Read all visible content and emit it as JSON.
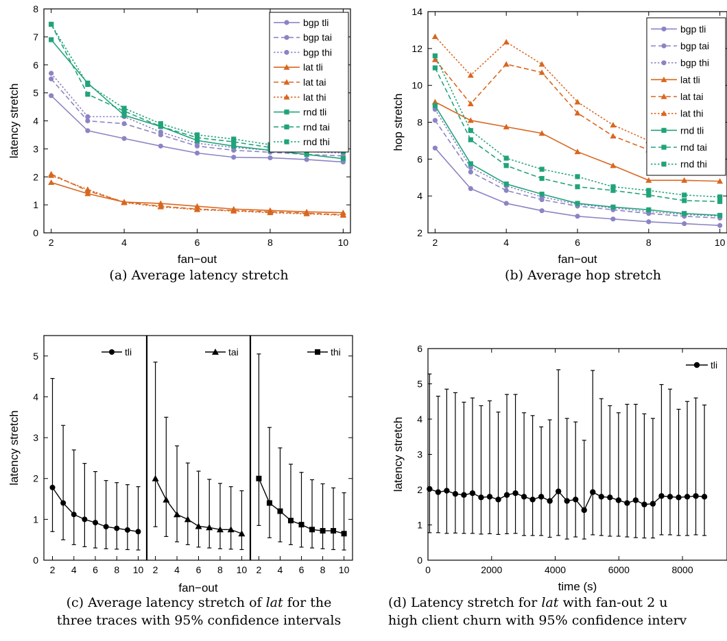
{
  "colors": {
    "bgp": "#8b84c4",
    "lat": "#d9661f",
    "rnd": "#21a37a",
    "black": "#000000"
  },
  "chart_data": [
    {
      "id": "a",
      "type": "line",
      "xlabel": "fan−out",
      "ylabel": "latency stretch",
      "xlim": [
        1.8,
        10.2
      ],
      "ylim": [
        0,
        8
      ],
      "xticks": [
        2,
        4,
        6,
        8,
        10
      ],
      "yticks": [
        0,
        1,
        2,
        3,
        4,
        5,
        6,
        7,
        8
      ],
      "legend": "top-right",
      "x": [
        2,
        3,
        4,
        5,
        6,
        7,
        8,
        9,
        10
      ],
      "caption": [
        "(a)  Average latency stretch"
      ],
      "series": [
        {
          "name": "bgp tli",
          "group": "bgp",
          "style": "solid",
          "marker": "circle",
          "values": [
            4.9,
            3.65,
            3.37,
            3.1,
            2.85,
            2.7,
            2.68,
            2.62,
            2.53
          ]
        },
        {
          "name": "bgp tai",
          "group": "bgp",
          "style": "dashed",
          "marker": "circle",
          "values": [
            5.5,
            4.0,
            3.9,
            3.5,
            3.1,
            2.95,
            2.88,
            2.8,
            2.75
          ]
        },
        {
          "name": "bgp thi",
          "group": "bgp",
          "style": "dotted",
          "marker": "circle",
          "values": [
            5.7,
            4.15,
            4.15,
            3.6,
            3.2,
            3.05,
            2.95,
            2.9,
            2.85
          ]
        },
        {
          "name": "lat tli",
          "group": "lat",
          "style": "solid",
          "marker": "triangle",
          "values": [
            1.8,
            1.4,
            1.1,
            1.05,
            0.95,
            0.85,
            0.8,
            0.75,
            0.72
          ]
        },
        {
          "name": "lat tai",
          "group": "lat",
          "style": "dashed",
          "marker": "triangle",
          "values": [
            2.1,
            1.5,
            1.1,
            0.95,
            0.85,
            0.8,
            0.75,
            0.7,
            0.65
          ]
        },
        {
          "name": "lat thi",
          "group": "lat",
          "style": "dotted",
          "marker": "triangle",
          "values": [
            2.05,
            1.55,
            1.08,
            0.93,
            0.83,
            0.78,
            0.72,
            0.68,
            0.63
          ]
        },
        {
          "name": "rnd tli",
          "group": "rnd",
          "style": "solid",
          "marker": "square",
          "values": [
            6.9,
            5.35,
            4.2,
            3.8,
            3.3,
            3.1,
            2.95,
            2.8,
            2.65
          ]
        },
        {
          "name": "rnd tai",
          "group": "rnd",
          "style": "dashed",
          "marker": "square",
          "values": [
            7.45,
            4.95,
            4.35,
            3.8,
            3.4,
            3.25,
            3.05,
            2.95,
            2.9
          ]
        },
        {
          "name": "rnd thi",
          "group": "rnd",
          "style": "dotted",
          "marker": "square",
          "values": [
            7.45,
            5.3,
            4.45,
            3.9,
            3.5,
            3.35,
            3.15,
            3.0,
            3.05
          ]
        }
      ]
    },
    {
      "id": "b",
      "type": "line",
      "xlabel": "fan−out",
      "ylabel": "hop stretch",
      "xlim": [
        1.8,
        10.2
      ],
      "ylim": [
        2,
        14
      ],
      "xticks": [
        2,
        4,
        6,
        8,
        10
      ],
      "yticks": [
        2,
        4,
        6,
        8,
        10,
        12,
        14
      ],
      "legend": "top-right",
      "x": [
        2,
        3,
        4,
        5,
        6,
        7,
        8,
        9,
        10
      ],
      "caption": [
        "(b)  Average hop stretch"
      ],
      "series": [
        {
          "name": "bgp tli",
          "group": "bgp",
          "style": "solid",
          "marker": "circle",
          "values": [
            6.6,
            4.4,
            3.6,
            3.2,
            2.9,
            2.75,
            2.6,
            2.5,
            2.4
          ]
        },
        {
          "name": "bgp tai",
          "group": "bgp",
          "style": "dashed",
          "marker": "circle",
          "values": [
            8.1,
            5.3,
            4.3,
            3.8,
            3.45,
            3.25,
            3.05,
            2.9,
            2.8
          ]
        },
        {
          "name": "bgp thi",
          "group": "bgp",
          "style": "dotted",
          "marker": "circle",
          "values": [
            8.7,
            5.55,
            4.55,
            3.95,
            3.55,
            3.35,
            3.15,
            3.0,
            2.9
          ]
        },
        {
          "name": "lat tli",
          "group": "lat",
          "style": "solid",
          "marker": "triangle",
          "values": [
            9.1,
            8.1,
            7.75,
            7.4,
            6.4,
            5.65,
            4.85,
            4.85,
            4.8
          ]
        },
        {
          "name": "lat tai",
          "group": "lat",
          "style": "dashed",
          "marker": "triangle",
          "values": [
            11.4,
            9.0,
            11.15,
            10.7,
            8.5,
            7.25,
            6.5,
            6.4,
            6.25
          ]
        },
        {
          "name": "lat thi",
          "group": "lat",
          "style": "dotted",
          "marker": "triangle",
          "values": [
            12.65,
            10.55,
            12.35,
            11.15,
            9.1,
            7.85,
            7.0,
            6.65,
            6.85
          ]
        },
        {
          "name": "rnd tli",
          "group": "rnd",
          "style": "solid",
          "marker": "square",
          "values": [
            8.9,
            5.75,
            4.65,
            4.1,
            3.6,
            3.4,
            3.25,
            3.05,
            2.95
          ]
        },
        {
          "name": "rnd tai",
          "group": "rnd",
          "style": "dashed",
          "marker": "square",
          "values": [
            10.95,
            7.05,
            5.65,
            4.95,
            4.5,
            4.3,
            4.05,
            3.75,
            3.7
          ]
        },
        {
          "name": "rnd thi",
          "group": "rnd",
          "style": "dotted",
          "marker": "square",
          "values": [
            11.6,
            7.55,
            6.05,
            5.45,
            5.05,
            4.5,
            4.3,
            4.05,
            3.95
          ]
        }
      ]
    },
    {
      "id": "c",
      "type": "line",
      "xlabel": "fan−out",
      "ylabel": "latency stretch",
      "ylim": [
        0,
        5.5
      ],
      "yticks": [
        0,
        1,
        2,
        3,
        4,
        5
      ],
      "xlim": [
        1.2,
        10.8
      ],
      "xticks": [
        2,
        4,
        6,
        8,
        10
      ],
      "x": [
        2,
        3,
        4,
        5,
        6,
        7,
        8,
        9,
        10
      ],
      "caption": [
        "(c)  Average latency stretch of ",
        "lat",
        " for the",
        "three traces with 95% confidence intervals"
      ],
      "panels": [
        {
          "name": "tli",
          "marker": "circle",
          "values": [
            1.78,
            1.4,
            1.12,
            1.0,
            0.92,
            0.82,
            0.78,
            0.74,
            0.7
          ],
          "upper": [
            4.45,
            3.3,
            2.7,
            2.37,
            2.17,
            1.95,
            1.9,
            1.85,
            1.8
          ],
          "lower": [
            0.7,
            0.5,
            0.38,
            0.33,
            0.3,
            0.28,
            0.27,
            0.26,
            0.25
          ]
        },
        {
          "name": "tai",
          "marker": "triangle",
          "values": [
            2.0,
            1.48,
            1.12,
            1.0,
            0.83,
            0.8,
            0.75,
            0.75,
            0.65
          ],
          "upper": [
            4.85,
            3.5,
            2.8,
            2.38,
            2.18,
            1.98,
            1.88,
            1.8,
            1.7
          ],
          "lower": [
            0.82,
            0.58,
            0.45,
            0.38,
            0.32,
            0.3,
            0.28,
            0.27,
            0.26
          ]
        },
        {
          "name": "thi",
          "marker": "square",
          "values": [
            2.0,
            1.4,
            1.2,
            0.97,
            0.87,
            0.75,
            0.72,
            0.72,
            0.65
          ],
          "upper": [
            5.05,
            3.25,
            2.75,
            2.35,
            2.15,
            1.97,
            1.87,
            1.77,
            1.65
          ],
          "lower": [
            0.85,
            0.55,
            0.45,
            0.38,
            0.32,
            0.3,
            0.28,
            0.26,
            0.25
          ]
        }
      ]
    },
    {
      "id": "d",
      "type": "line",
      "xlabel": "time (s)",
      "ylabel": "latency stretch",
      "xlim": [
        0,
        9400
      ],
      "ylim": [
        0,
        6
      ],
      "xticks": [
        0,
        2000,
        4000,
        6000,
        8000
      ],
      "yticks": [
        0,
        1,
        2,
        3,
        4,
        5,
        6
      ],
      "legend": "top-right",
      "caption": [
        "(d)  Latency stretch for ",
        "lat",
        " with fan-out 2 u",
        "high client churn with 95% confidence interv"
      ],
      "series": [
        {
          "name": "tli",
          "marker": "circle",
          "x": [
            50,
            320,
            590,
            860,
            1130,
            1400,
            1670,
            1940,
            2210,
            2480,
            2750,
            3020,
            3290,
            3560,
            3830,
            4100,
            4370,
            4640,
            4910,
            5180,
            5450,
            5720,
            5990,
            6260,
            6530,
            6800,
            7070,
            7340,
            7610,
            7880,
            8150,
            8420,
            8690
          ],
          "values": [
            2.02,
            1.93,
            1.97,
            1.88,
            1.85,
            1.9,
            1.78,
            1.8,
            1.72,
            1.85,
            1.9,
            1.8,
            1.72,
            1.8,
            1.68,
            1.95,
            1.68,
            1.72,
            1.42,
            1.93,
            1.8,
            1.78,
            1.7,
            1.62,
            1.7,
            1.58,
            1.6,
            1.82,
            1.8,
            1.78,
            1.8,
            1.82,
            1.8
          ],
          "upper": [
            5.28,
            4.65,
            4.85,
            4.75,
            4.48,
            4.6,
            4.38,
            4.52,
            4.2,
            4.7,
            4.7,
            4.18,
            4.1,
            3.78,
            3.98,
            5.4,
            4.02,
            3.92,
            3.4,
            5.38,
            4.58,
            4.38,
            4.18,
            4.42,
            4.42,
            4.15,
            4.02,
            4.98,
            4.85,
            4.28,
            4.5,
            4.6,
            4.4
          ],
          "lower": [
            0.78,
            0.78,
            0.76,
            0.77,
            0.76,
            0.76,
            0.74,
            0.75,
            0.73,
            0.75,
            0.76,
            0.7,
            0.7,
            0.7,
            0.65,
            0.7,
            0.6,
            0.66,
            0.6,
            0.72,
            0.7,
            0.68,
            0.68,
            0.66,
            0.64,
            0.63,
            0.63,
            0.72,
            0.72,
            0.7,
            0.7,
            0.72,
            0.7
          ]
        }
      ]
    }
  ]
}
